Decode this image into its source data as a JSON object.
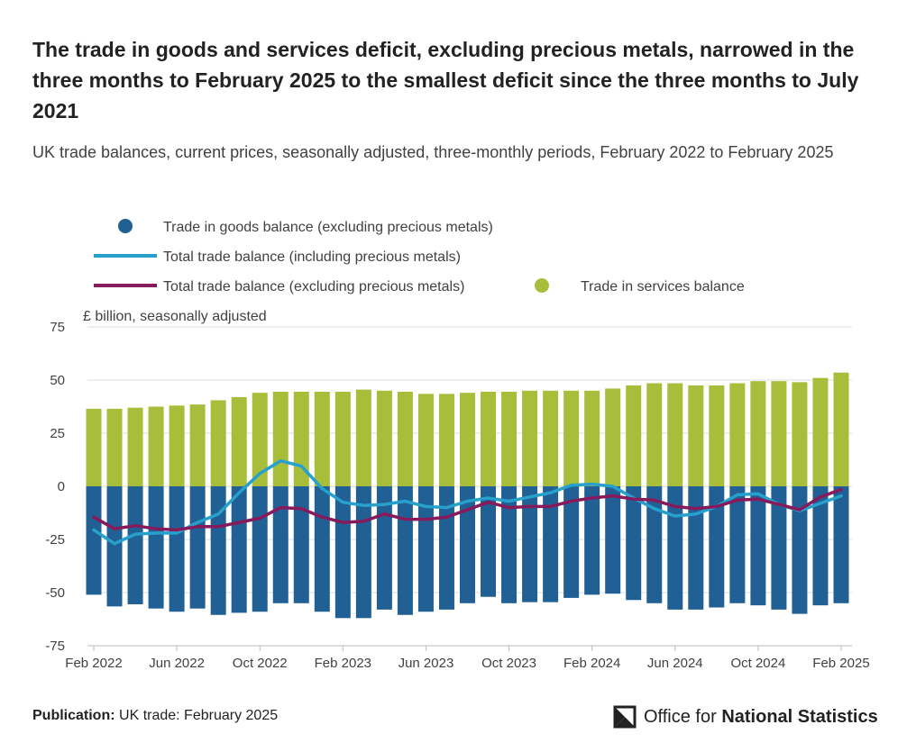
{
  "header": {
    "title": "The trade in goods and services deficit, excluding precious metals, narrowed in the three months to February 2025 to the smallest deficit since the three months to July 2021",
    "subtitle": "UK trade balances, current prices, seasonally adjusted, three-monthly periods, February 2022 to February 2025"
  },
  "footer": {
    "publication_label": "Publication:",
    "publication_value": "UK trade: February 2025",
    "logo_text_light": "Office for ",
    "logo_text_bold": "National Statistics"
  },
  "colors": {
    "goods": "#206095",
    "services": "#a8bd3a",
    "total_incl": "#27a0cc",
    "total_excl": "#871a5b",
    "grid": "#dcdcdc",
    "axis_text": "#414042"
  },
  "chart_data": {
    "type": "bar",
    "stacked": true,
    "ylabel": "£ billion, seasonally adjusted",
    "ylim": [
      -75,
      75
    ],
    "yticks": [
      75,
      50,
      25,
      0,
      -25,
      -50,
      -75
    ],
    "grid": true,
    "legend_position": "top",
    "x": [
      "Feb 2022",
      "Mar 2022",
      "Apr 2022",
      "May 2022",
      "Jun 2022",
      "Jul 2022",
      "Aug 2022",
      "Sep 2022",
      "Oct 2022",
      "Nov 2022",
      "Dec 2022",
      "Jan 2023",
      "Feb 2023",
      "Mar 2023",
      "Apr 2023",
      "May 2023",
      "Jun 2023",
      "Jul 2023",
      "Aug 2023",
      "Sep 2023",
      "Oct 2023",
      "Nov 2023",
      "Dec 2023",
      "Jan 2024",
      "Feb 2024",
      "Mar 2024",
      "Apr 2024",
      "May 2024",
      "Jun 2024",
      "Jul 2024",
      "Aug 2024",
      "Sep 2024",
      "Oct 2024",
      "Nov 2024",
      "Dec 2024",
      "Jan 2025",
      "Feb 2025"
    ],
    "xtick_labels": [
      "Feb 2022",
      "Jun 2022",
      "Oct 2022",
      "Feb 2023",
      "Jun 2023",
      "Oct 2023",
      "Feb 2024",
      "Jun 2024",
      "Oct 2024",
      "Feb 2025"
    ],
    "series": [
      {
        "name": "Trade in goods balance (excluding precious metals)",
        "kind": "bar",
        "values": [
          -51,
          -56.5,
          -55.5,
          -57.5,
          -59,
          -57.5,
          -60.5,
          -59.5,
          -59,
          -55,
          -55,
          -59,
          -62,
          -62,
          -58,
          -60.5,
          -59,
          -58,
          -55,
          -52,
          -55,
          -54.5,
          -54.5,
          -52.5,
          -51,
          -50.5,
          -53.5,
          -55,
          -58,
          -58,
          -57,
          -55,
          -56,
          -58,
          -60,
          -56,
          -55
        ]
      },
      {
        "name": "Trade in services balance",
        "kind": "bar",
        "values": [
          36.5,
          36.5,
          37,
          37.5,
          38,
          38.5,
          40.5,
          42,
          44,
          44.5,
          44.5,
          44.5,
          44.5,
          45.5,
          45,
          44.5,
          43.5,
          43.5,
          44,
          44.5,
          44.5,
          45,
          45,
          45,
          45,
          46,
          47.5,
          48.5,
          48.5,
          47.5,
          47.5,
          48.5,
          49.5,
          49.5,
          49,
          51,
          53.5
        ]
      },
      {
        "name": "Total trade balance (including precious metals)",
        "kind": "line",
        "values": [
          -20.5,
          -27,
          -22.5,
          -22,
          -22,
          -17,
          -13,
          -3,
          6,
          12,
          9.5,
          -1,
          -7.5,
          -9,
          -8.5,
          -7,
          -9.5,
          -10,
          -7,
          -5.5,
          -7,
          -5,
          -3,
          0.5,
          1,
          0,
          -5.5,
          -10.5,
          -14,
          -13,
          -9.5,
          -4,
          -3.5,
          -8.5,
          -11.5,
          -8,
          -4.5
        ]
      },
      {
        "name": "Total trade balance (excluding precious metals)",
        "kind": "line",
        "values": [
          -14.5,
          -20,
          -18.5,
          -20,
          -20.5,
          -19,
          -19,
          -17,
          -15,
          -10,
          -10.5,
          -14.5,
          -17,
          -16.5,
          -13,
          -15.5,
          -15.5,
          -14.5,
          -11,
          -7.5,
          -10,
          -9.5,
          -9.5,
          -7,
          -5.5,
          -4.5,
          -6,
          -6.5,
          -9.5,
          -10.5,
          -9.5,
          -6.5,
          -6,
          -8.5,
          -11,
          -5,
          -1.5
        ]
      }
    ]
  }
}
